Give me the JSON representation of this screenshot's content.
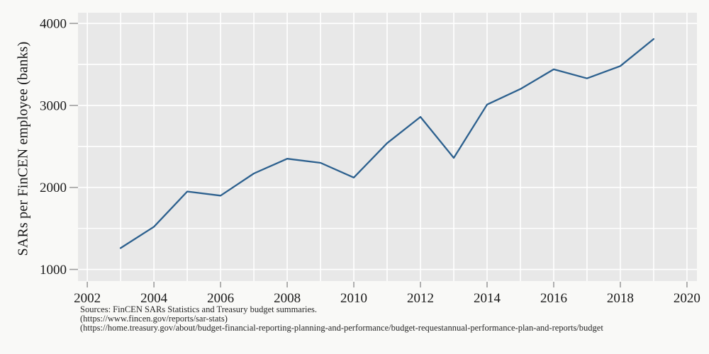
{
  "chart_data": {
    "type": "line",
    "title": "",
    "xlabel": "",
    "ylabel": "SARs per FinCEN employee (banks)",
    "x": [
      2003,
      2004,
      2005,
      2006,
      2007,
      2008,
      2009,
      2010,
      2011,
      2012,
      2013,
      2014,
      2015,
      2016,
      2017,
      2018,
      2019
    ],
    "values": [
      1260,
      1520,
      1950,
      1900,
      2170,
      2350,
      2300,
      2120,
      2540,
      2860,
      2360,
      3010,
      3200,
      3440,
      3330,
      3480,
      3810
    ],
    "x_ticks": [
      2002,
      2004,
      2006,
      2008,
      2010,
      2012,
      2014,
      2016,
      2018,
      2020
    ],
    "y_ticks": [
      1000,
      2000,
      3000,
      4000
    ],
    "xlim": [
      2001.72,
      2020.3
    ],
    "ylim": [
      858,
      4130
    ],
    "x_grid_step": 1,
    "y_grid_step": 500,
    "grid": true,
    "legend": false,
    "line_color": "#2c608e",
    "plot_bg": "#e8e8e8",
    "outer_bg": "#f9f9f7",
    "grid_color": "#ffffff",
    "tick_color": "#9e9e9e",
    "tick_label_color": "#1a1a1a"
  },
  "footer": {
    "line1": "Sources: FinCEN SARs Statistics and Treasury budget summaries.",
    "line2": "(https://www.fincen.gov/reports/sar-stats)",
    "line3": "(https://home.treasury.gov/about/budget-financial-reporting-planning-and-performance/budget-requestannual-performance-plan-and-reports/budget"
  }
}
